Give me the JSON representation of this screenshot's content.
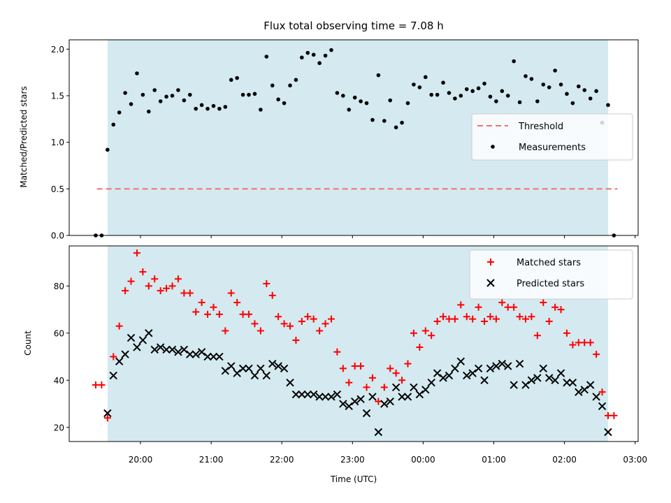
{
  "chart_data": {
    "title": "Flux total observing time = 7.08 h",
    "xlabel": "Time (UTC)",
    "x_tick_labels": [
      "20:00",
      "21:00",
      "22:00",
      "23:00",
      "00:00",
      "01:00",
      "02:00",
      "03:00"
    ],
    "shaded_span": [
      "19:32",
      "02:37"
    ],
    "shade_color": "#d4eaf0",
    "panels": [
      {
        "type": "scatter",
        "ylabel": "Matched/Predicted stars",
        "ylim": [
          0,
          2.1
        ],
        "yticks": [
          "0.0",
          "0.5",
          "1.0",
          "1.5",
          "2.0"
        ],
        "legend_position": "center-right",
        "threshold": {
          "name": "Threshold",
          "value": 0.5,
          "x_start": "19:23",
          "x_end": "02:45",
          "color": "#f07070"
        },
        "series": [
          {
            "name": "Measurements",
            "color": "#000000",
            "marker": "dot",
            "x": [
              "19:22",
              "19:27",
              "19:32",
              "19:37",
              "19:42",
              "19:47",
              "19:52",
              "19:57",
              "20:02",
              "20:07",
              "20:12",
              "20:17",
              "20:22",
              "20:27",
              "20:32",
              "20:37",
              "20:42",
              "20:47",
              "20:52",
              "20:57",
              "21:02",
              "21:07",
              "21:12",
              "21:17",
              "21:22",
              "21:27",
              "21:32",
              "21:37",
              "21:42",
              "21:47",
              "21:52",
              "21:57",
              "22:02",
              "22:07",
              "22:12",
              "22:17",
              "22:22",
              "22:27",
              "22:32",
              "22:37",
              "22:42",
              "22:47",
              "22:52",
              "22:57",
              "23:02",
              "23:07",
              "23:12",
              "23:17",
              "23:22",
              "23:27",
              "23:32",
              "23:37",
              "23:42",
              "23:47",
              "23:52",
              "23:57",
              "00:02",
              "00:07",
              "00:12",
              "00:17",
              "00:22",
              "00:27",
              "00:32",
              "00:37",
              "00:42",
              "00:47",
              "00:52",
              "00:57",
              "01:02",
              "01:07",
              "01:12",
              "01:17",
              "01:22",
              "01:27",
              "01:32",
              "01:37",
              "01:42",
              "01:47",
              "01:52",
              "01:57",
              "02:02",
              "02:07",
              "02:12",
              "02:17",
              "02:22",
              "02:27",
              "02:32",
              "02:37",
              "02:42"
            ],
            "y": [
              0.0,
              0.0,
              0.92,
              1.19,
              1.32,
              1.53,
              1.41,
              1.74,
              1.51,
              1.33,
              1.56,
              1.44,
              1.49,
              1.5,
              1.56,
              1.45,
              1.51,
              1.36,
              1.4,
              1.36,
              1.39,
              1.36,
              1.38,
              1.67,
              1.69,
              1.51,
              1.51,
              1.52,
              1.35,
              1.92,
              1.61,
              1.46,
              1.42,
              1.61,
              1.67,
              1.91,
              1.96,
              1.94,
              1.85,
              1.93,
              1.99,
              1.53,
              1.5,
              1.35,
              1.48,
              1.44,
              1.42,
              1.24,
              1.72,
              1.23,
              1.45,
              1.16,
              1.21,
              1.42,
              1.62,
              1.59,
              1.7,
              1.51,
              1.51,
              1.64,
              1.53,
              1.47,
              1.5,
              1.57,
              1.55,
              1.58,
              1.63,
              1.49,
              1.44,
              1.55,
              1.5,
              1.87,
              1.43,
              1.71,
              1.68,
              1.44,
              1.62,
              1.59,
              1.77,
              1.62,
              1.52,
              1.42,
              1.6,
              1.56,
              1.47,
              1.55,
              1.21,
              1.4,
              0.0
            ]
          }
        ]
      },
      {
        "type": "scatter",
        "ylabel": "Count",
        "ylim": [
          14,
          97
        ],
        "yticks": [
          "20",
          "40",
          "60",
          "80"
        ],
        "legend_position": "top-right",
        "series": [
          {
            "name": "Matched stars",
            "color": "#ff0000",
            "marker": "plus",
            "x": [
              "19:22",
              "19:27",
              "19:32",
              "19:37",
              "19:42",
              "19:47",
              "19:52",
              "19:57",
              "20:02",
              "20:07",
              "20:12",
              "20:17",
              "20:22",
              "20:27",
              "20:32",
              "20:37",
              "20:42",
              "20:47",
              "20:52",
              "20:57",
              "21:02",
              "21:07",
              "21:12",
              "21:17",
              "21:22",
              "21:27",
              "21:32",
              "21:37",
              "21:42",
              "21:47",
              "21:52",
              "21:57",
              "22:02",
              "22:07",
              "22:12",
              "22:17",
              "22:22",
              "22:27",
              "22:32",
              "22:37",
              "22:42",
              "22:47",
              "22:52",
              "22:57",
              "23:02",
              "23:07",
              "23:12",
              "23:17",
              "23:22",
              "23:27",
              "23:32",
              "23:37",
              "23:42",
              "23:47",
              "23:52",
              "23:57",
              "00:02",
              "00:07",
              "00:12",
              "00:17",
              "00:22",
              "00:27",
              "00:32",
              "00:37",
              "00:42",
              "00:47",
              "00:52",
              "00:57",
              "01:02",
              "01:07",
              "01:12",
              "01:17",
              "01:22",
              "01:27",
              "01:32",
              "01:37",
              "01:42",
              "01:47",
              "01:52",
              "01:57",
              "02:02",
              "02:07",
              "02:12",
              "02:17",
              "02:22",
              "02:27",
              "02:32",
              "02:37",
              "02:42"
            ],
            "y": [
              38,
              38,
              24,
              50,
              63,
              78,
              82,
              94,
              86,
              80,
              83,
              78,
              79,
              80,
              83,
              77,
              77,
              69,
              73,
              68,
              71,
              68,
              61,
              77,
              73,
              68,
              68,
              64,
              61,
              81,
              76,
              67,
              64,
              63,
              57,
              65,
              67,
              66,
              61,
              64,
              66,
              52,
              45,
              39,
              46,
              46,
              37,
              41,
              31,
              37,
              45,
              43,
              40,
              47,
              60,
              54,
              61,
              59,
              65,
              67,
              66,
              66,
              72,
              67,
              66,
              71,
              65,
              67,
              66,
              73,
              71,
              71,
              67,
              66,
              67,
              59,
              73,
              65,
              71,
              70,
              60,
              55,
              56,
              56,
              56,
              51,
              35,
              25,
              25
            ]
          },
          {
            "name": "Predicted stars",
            "color": "#000000",
            "marker": "x",
            "x": [
              "19:32",
              "19:37",
              "19:42",
              "19:47",
              "19:52",
              "19:57",
              "20:02",
              "20:07",
              "20:12",
              "20:17",
              "20:22",
              "20:27",
              "20:32",
              "20:37",
              "20:42",
              "20:47",
              "20:52",
              "20:57",
              "21:02",
              "21:07",
              "21:12",
              "21:17",
              "21:22",
              "21:27",
              "21:32",
              "21:37",
              "21:42",
              "21:47",
              "21:52",
              "21:57",
              "22:02",
              "22:07",
              "22:12",
              "22:17",
              "22:22",
              "22:27",
              "22:32",
              "22:37",
              "22:42",
              "22:47",
              "22:52",
              "22:57",
              "23:02",
              "23:07",
              "23:12",
              "23:17",
              "23:22",
              "23:27",
              "23:32",
              "23:37",
              "23:42",
              "23:47",
              "23:52",
              "23:57",
              "00:02",
              "00:07",
              "00:12",
              "00:17",
              "00:22",
              "00:27",
              "00:32",
              "00:37",
              "00:42",
              "00:47",
              "00:52",
              "00:57",
              "01:02",
              "01:07",
              "01:12",
              "01:17",
              "01:22",
              "01:27",
              "01:32",
              "01:37",
              "01:42",
              "01:47",
              "01:52",
              "01:57",
              "02:02",
              "02:07",
              "02:12",
              "02:17",
              "02:22",
              "02:27",
              "02:32",
              "02:37"
            ],
            "y": [
              26,
              42,
              48,
              51,
              58,
              54,
              57,
              60,
              53,
              54,
              53,
              53,
              52,
              53,
              51,
              51,
              52,
              50,
              50,
              50,
              44,
              46,
              43,
              45,
              45,
              42,
              45,
              42,
              47,
              46,
              45,
              39,
              34,
              34,
              34,
              34,
              33,
              33,
              33,
              34,
              30,
              29,
              31,
              32,
              26,
              33,
              18,
              30,
              31,
              37,
              33,
              33,
              37,
              34,
              36,
              39,
              43,
              41,
              42,
              45,
              48,
              42,
              43,
              45,
              40,
              45,
              46,
              47,
              46,
              38,
              47,
              38,
              40,
              41,
              45,
              41,
              40,
              43,
              39,
              39,
              35,
              36,
              38,
              33,
              29,
              18
            ]
          }
        ]
      }
    ]
  }
}
